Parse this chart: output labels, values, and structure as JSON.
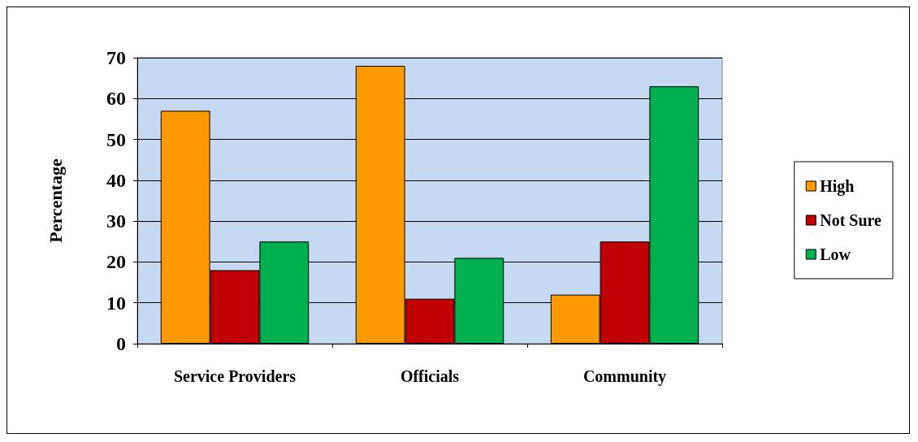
{
  "chart_data": {
    "type": "bar",
    "ylabel": "Percentage",
    "categories": [
      "Service Providers",
      "Officials",
      "Community"
    ],
    "series": [
      {
        "name": "High",
        "color": "#ff9900",
        "values": [
          57,
          68,
          12
        ]
      },
      {
        "name": "Not Sure",
        "color": "#c00000",
        "values": [
          18,
          11,
          25
        ]
      },
      {
        "name": "Low",
        "color": "#00b050",
        "values": [
          25,
          21,
          63
        ]
      }
    ],
    "ylim": [
      0,
      70
    ],
    "yticks": [
      0,
      10,
      20,
      30,
      40,
      50,
      60,
      70
    ],
    "grid": "y",
    "legend": "right"
  }
}
